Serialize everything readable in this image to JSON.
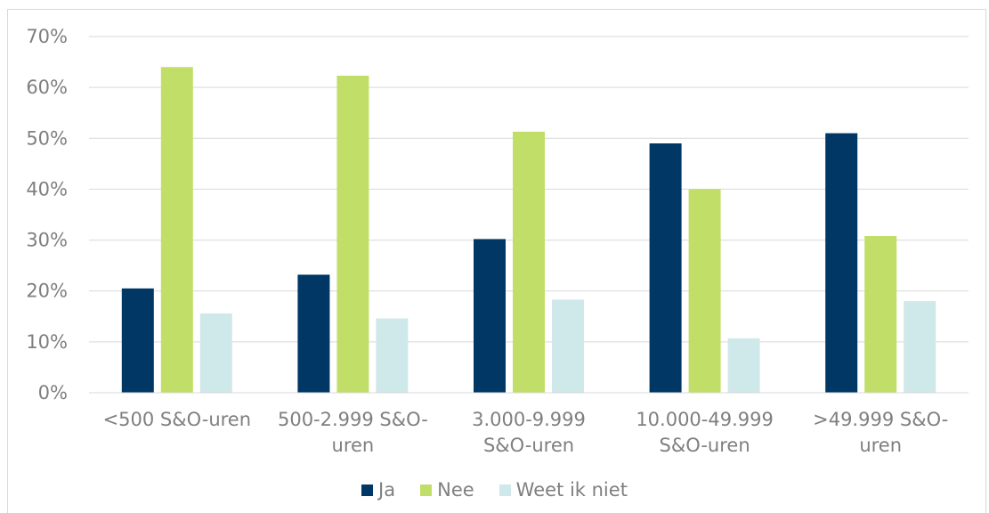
{
  "chart_data": {
    "type": "bar",
    "categories": [
      [
        "<500 S&O-uren"
      ],
      [
        "500-2.999 S&O-",
        "uren"
      ],
      [
        "3.000-9.999",
        "S&O-uren"
      ],
      [
        "10.000-49.999",
        "S&O-uren"
      ],
      [
        ">49.999 S&O-",
        "uren"
      ]
    ],
    "series": [
      {
        "name": "Ja",
        "color": "#003764",
        "values": [
          20.5,
          23.2,
          30.2,
          49.0,
          51.0
        ]
      },
      {
        "name": "Nee",
        "color": "#c1df68",
        "values": [
          64.0,
          62.3,
          51.3,
          40.0,
          30.8
        ]
      },
      {
        "name": "Weet ik niet",
        "color": "#cfe8ea",
        "values": [
          15.6,
          14.6,
          18.3,
          10.7,
          18.0
        ]
      }
    ],
    "yticks": [
      "0%",
      "10%",
      "20%",
      "30%",
      "40%",
      "50%",
      "60%",
      "70%"
    ],
    "ylim": [
      0,
      70
    ],
    "grid": true,
    "legend_position": "bottom"
  }
}
